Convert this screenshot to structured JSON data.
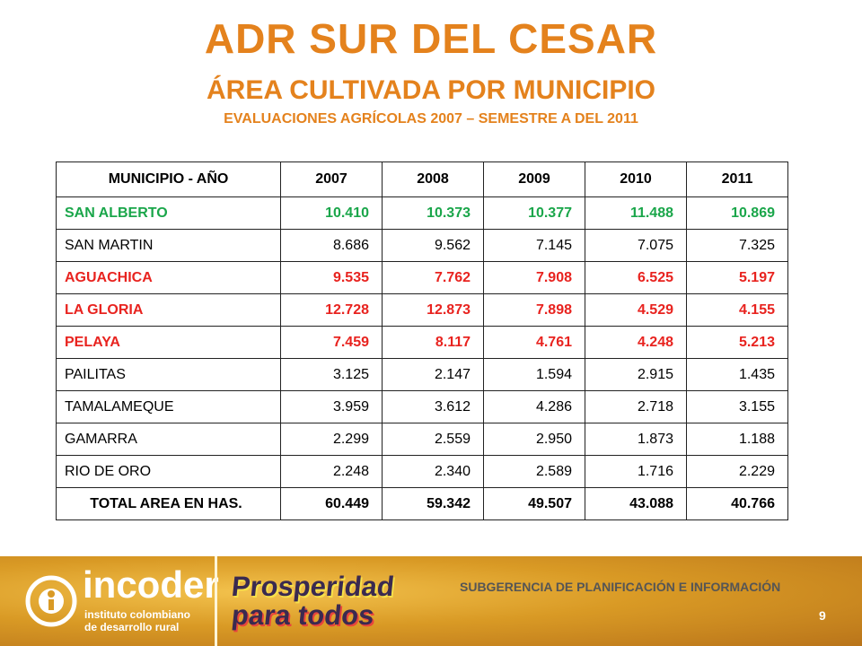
{
  "header": {
    "title": "ADR SUR DEL CESAR",
    "subtitle": "ÁREA CULTIVADA POR MUNICIPIO",
    "note": "EVALUACIONES AGRÍCOLAS 2007 – SEMESTRE A DEL 2011"
  },
  "table": {
    "columns": [
      "MUNICIPIO - AÑO",
      "2007",
      "2008",
      "2009",
      "2010",
      "2011"
    ],
    "rows": [
      {
        "cells": [
          "SAN ALBERTO",
          "10.410",
          "10.373",
          "10.377",
          "11.488",
          "10.869"
        ],
        "color": "#1aa64a"
      },
      {
        "cells": [
          "SAN MARTIN",
          "8.686",
          "9.562",
          "7.145",
          "7.075",
          "7.325"
        ]
      },
      {
        "cells": [
          "AGUACHICA",
          "9.535",
          "7.762",
          "7.908",
          "6.525",
          "5.197"
        ],
        "color": "#e8231f"
      },
      {
        "cells": [
          "LA GLORIA",
          "12.728",
          "12.873",
          "7.898",
          "4.529",
          "4.155"
        ],
        "color": "#e8231f"
      },
      {
        "cells": [
          "PELAYA",
          "7.459",
          "8.117",
          "4.761",
          "4.248",
          "5.213"
        ],
        "color": "#e8231f"
      },
      {
        "cells": [
          "PAILITAS",
          "3.125",
          "2.147",
          "1.594",
          "2.915",
          "1.435"
        ]
      },
      {
        "cells": [
          "TAMALAMEQUE",
          "3.959",
          "3.612",
          "4.286",
          "2.718",
          "3.155"
        ]
      },
      {
        "cells": [
          "GAMARRA",
          "2.299",
          "2.559",
          "2.950",
          "1.873",
          "1.188"
        ]
      },
      {
        "cells": [
          "RIO DE ORO",
          "2.248",
          "2.340",
          "2.589",
          "1.716",
          "2.229"
        ]
      }
    ],
    "total": [
      "TOTAL AREA EN HAS.",
      "60.449",
      "59.342",
      "49.507",
      "43.088",
      "40.766"
    ]
  },
  "footer": {
    "brand": "incoder",
    "brand_sub1": "instituto colombiano",
    "brand_sub2": "de desarrollo rural",
    "slogan1": "Prosperidad",
    "slogan2": "para todos",
    "department": "SUBGERENCIA DE PLANIFICACIÓN E INFORMACIÓN",
    "page": "9"
  }
}
